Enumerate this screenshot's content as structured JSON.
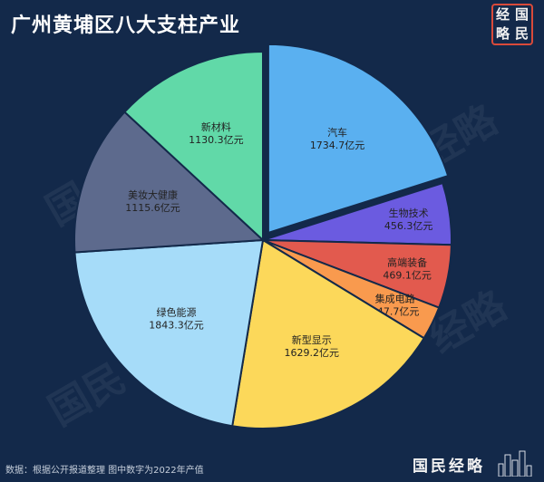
{
  "page": {
    "title": "广州黄埔区八大支柱产业",
    "seal_chars": [
      "经",
      "国",
      "略",
      "民"
    ],
    "footnote": "数据：根据公开报道整理 图中数字为2022年产值",
    "brand": "国民经略"
  },
  "chart_data": {
    "type": "pie",
    "title": "广州黄埔区八大支柱产业",
    "unit": "亿元",
    "slices": [
      {
        "label": "汽车",
        "value": 1734.7,
        "text": "1734.7亿元",
        "color": "#5ab0f0",
        "exploded": true
      },
      {
        "label": "生物技术",
        "value": 456.3,
        "text": "456.3亿元",
        "color": "#6b5be0",
        "exploded": false
      },
      {
        "label": "高端装备",
        "value": 469.1,
        "text": "469.1亿元",
        "color": "#e25a4e",
        "exploded": false
      },
      {
        "label": "集成电路",
        "value": 247.7,
        "text": "247.7亿元",
        "color": "#f99a4e",
        "exploded": false
      },
      {
        "label": "新型显示",
        "value": 1629.2,
        "text": "1629.2亿元",
        "color": "#fcd85a",
        "exploded": false
      },
      {
        "label": "绿色能源",
        "value": 1843.3,
        "text": "1843.3亿元",
        "color": "#a6dcf9",
        "exploded": false
      },
      {
        "label": "美妆大健康",
        "value": 1115.6,
        "text": "1115.6亿元",
        "color": "#5d6a8d",
        "exploded": false
      },
      {
        "label": "新材料",
        "value": 1130.3,
        "text": "1130.3亿元",
        "color": "#61d9a8",
        "exploded": false
      }
    ]
  }
}
